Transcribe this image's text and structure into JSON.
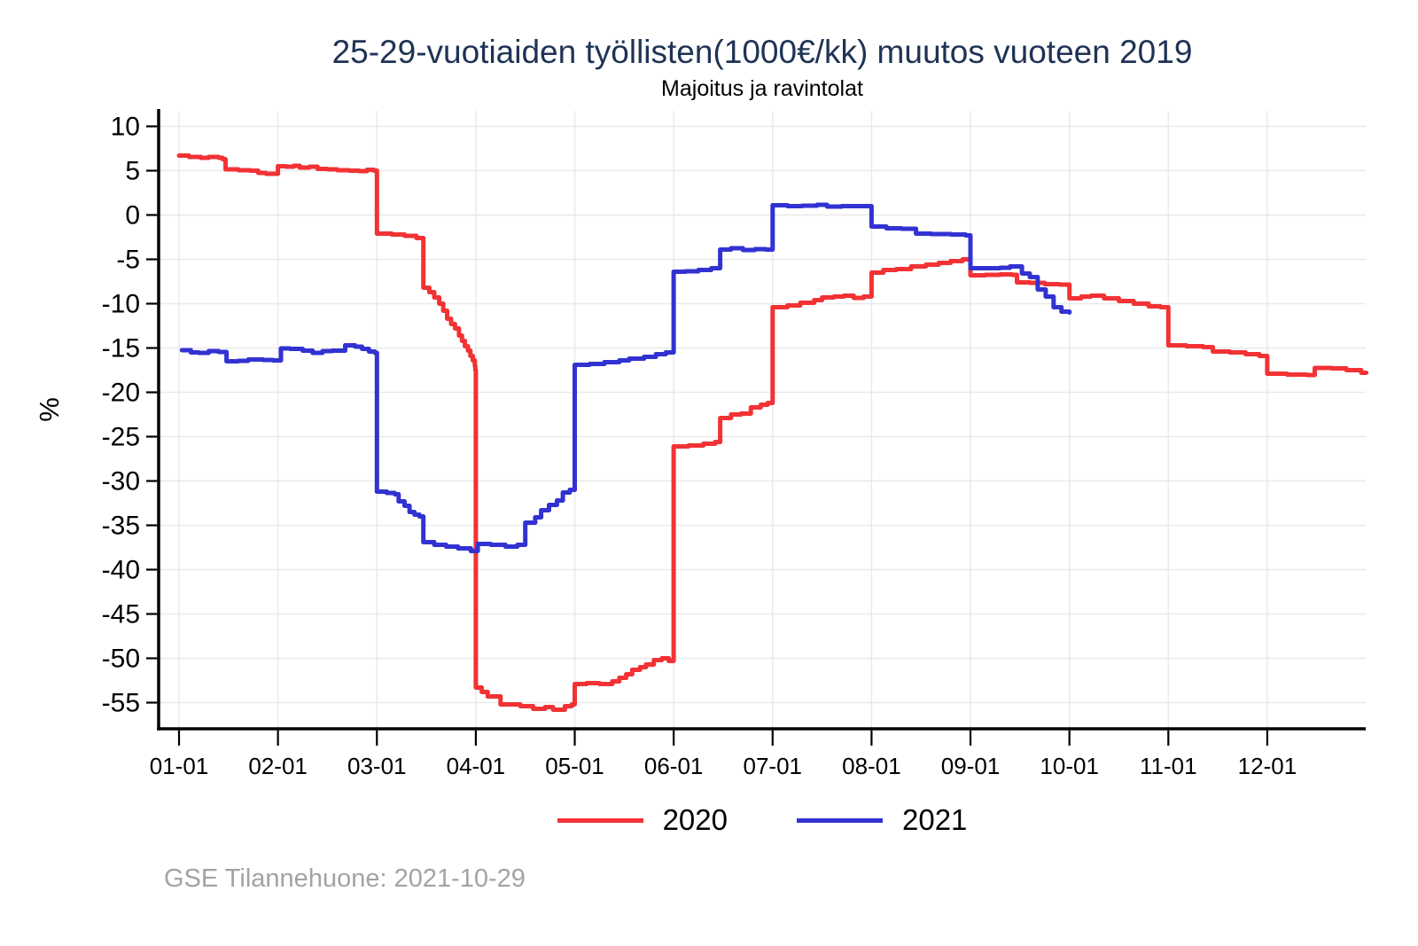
{
  "title": "25-29-vuotiaiden työllisten(1000€/kk) muutos vuoteen 2019",
  "subtitle": "Majoitus ja ravintolat",
  "footer": "GSE Tilannehuone: 2021-10-29",
  "colors": {
    "series_2020": "#f23234",
    "series_2021": "#3232d2",
    "title": "#1e3355",
    "axis": "#000000",
    "gridline": "#e9e9e9",
    "footer": "#a3a3a3"
  },
  "legend": [
    {
      "label": "2020",
      "color": "#f23234"
    },
    {
      "label": "2021",
      "color": "#3232d2"
    }
  ],
  "chart_data": {
    "type": "line",
    "title": "25-29-vuotiaiden työllisten(1000€/kk) muutos vuoteen 2019",
    "subtitle": "Majoitus ja ravintolat",
    "xlabel": "",
    "ylabel": "%",
    "grid": "on",
    "legend_position": "bottom",
    "step_interpolation": true,
    "x_tick_labels": [
      "01-01",
      "02-01",
      "03-01",
      "04-01",
      "05-01",
      "06-01",
      "07-01",
      "08-01",
      "09-01",
      "10-01",
      "11-01",
      "12-01"
    ],
    "y_ticks": [
      10,
      5,
      0,
      -5,
      -10,
      -15,
      -20,
      -25,
      -30,
      -35,
      -40,
      -45,
      -50,
      -55
    ],
    "ylim": [
      -58.2,
      11.8
    ],
    "xlim_months": [
      -0.21,
      12.05
    ],
    "series": [
      {
        "name": "2020",
        "color": "#f23234",
        "points_months_value": [
          [
            0.0,
            6.7
          ],
          [
            0.1,
            6.55
          ],
          [
            0.22,
            6.45
          ],
          [
            0.3,
            6.55
          ],
          [
            0.4,
            6.45
          ],
          [
            0.44,
            6.3
          ],
          [
            0.47,
            5.15
          ],
          [
            0.6,
            5.05
          ],
          [
            0.72,
            5.0
          ],
          [
            0.8,
            4.75
          ],
          [
            0.88,
            4.65
          ],
          [
            1.0,
            5.5
          ],
          [
            1.08,
            5.45
          ],
          [
            1.16,
            5.55
          ],
          [
            1.22,
            5.35
          ],
          [
            1.32,
            5.45
          ],
          [
            1.4,
            5.2
          ],
          [
            1.5,
            5.15
          ],
          [
            1.6,
            5.05
          ],
          [
            1.72,
            5.0
          ],
          [
            1.82,
            4.95
          ],
          [
            1.9,
            5.1
          ],
          [
            1.97,
            5.0
          ],
          [
            2.0,
            -2.1
          ],
          [
            2.15,
            -2.2
          ],
          [
            2.28,
            -2.35
          ],
          [
            2.4,
            -2.6
          ],
          [
            2.47,
            -8.2
          ],
          [
            2.53,
            -8.7
          ],
          [
            2.58,
            -9.3
          ],
          [
            2.63,
            -10.0
          ],
          [
            2.67,
            -10.8
          ],
          [
            2.71,
            -11.7
          ],
          [
            2.75,
            -12.3
          ],
          [
            2.79,
            -12.8
          ],
          [
            2.83,
            -13.6
          ],
          [
            2.86,
            -14.2
          ],
          [
            2.89,
            -14.8
          ],
          [
            2.92,
            -15.3
          ],
          [
            2.945,
            -15.9
          ],
          [
            2.97,
            -16.4
          ],
          [
            2.99,
            -17.0
          ],
          [
            2.995,
            -17.5
          ],
          [
            3.0,
            -53.3
          ],
          [
            3.06,
            -53.8
          ],
          [
            3.12,
            -54.3
          ],
          [
            3.25,
            -55.2
          ],
          [
            3.45,
            -55.4
          ],
          [
            3.58,
            -55.7
          ],
          [
            3.7,
            -55.5
          ],
          [
            3.78,
            -55.8
          ],
          [
            3.9,
            -55.4
          ],
          [
            3.97,
            -55.2
          ],
          [
            4.0,
            -52.9
          ],
          [
            4.12,
            -52.8
          ],
          [
            4.25,
            -52.9
          ],
          [
            4.38,
            -52.6
          ],
          [
            4.45,
            -52.2
          ],
          [
            4.52,
            -51.8
          ],
          [
            4.58,
            -51.3
          ],
          [
            4.66,
            -51.0
          ],
          [
            4.72,
            -50.7
          ],
          [
            4.8,
            -50.2
          ],
          [
            4.88,
            -50.0
          ],
          [
            4.95,
            -50.3
          ],
          [
            5.0,
            -26.1
          ],
          [
            5.15,
            -26.0
          ],
          [
            5.3,
            -25.8
          ],
          [
            5.42,
            -25.6
          ],
          [
            5.47,
            -22.9
          ],
          [
            5.58,
            -22.5
          ],
          [
            5.68,
            -22.4
          ],
          [
            5.78,
            -21.7
          ],
          [
            5.88,
            -21.4
          ],
          [
            5.95,
            -21.2
          ],
          [
            6.0,
            -10.4
          ],
          [
            6.15,
            -10.2
          ],
          [
            6.28,
            -9.9
          ],
          [
            6.42,
            -9.6
          ],
          [
            6.5,
            -9.3
          ],
          [
            6.62,
            -9.2
          ],
          [
            6.72,
            -9.1
          ],
          [
            6.82,
            -9.35
          ],
          [
            6.92,
            -9.2
          ],
          [
            7.0,
            -6.5
          ],
          [
            7.12,
            -6.2
          ],
          [
            7.25,
            -6.1
          ],
          [
            7.4,
            -5.8
          ],
          [
            7.55,
            -5.6
          ],
          [
            7.68,
            -5.4
          ],
          [
            7.8,
            -5.2
          ],
          [
            7.92,
            -5.0
          ],
          [
            8.0,
            -6.8
          ],
          [
            8.15,
            -6.75
          ],
          [
            8.3,
            -6.7
          ],
          [
            8.42,
            -6.75
          ],
          [
            8.47,
            -7.6
          ],
          [
            8.6,
            -7.65
          ],
          [
            8.75,
            -7.8
          ],
          [
            8.9,
            -7.85
          ],
          [
            9.0,
            -9.4
          ],
          [
            9.12,
            -9.2
          ],
          [
            9.22,
            -9.1
          ],
          [
            9.35,
            -9.4
          ],
          [
            9.5,
            -9.7
          ],
          [
            9.65,
            -10.0
          ],
          [
            9.8,
            -10.3
          ],
          [
            9.92,
            -10.4
          ],
          [
            10.0,
            -14.7
          ],
          [
            10.18,
            -14.8
          ],
          [
            10.35,
            -14.9
          ],
          [
            10.45,
            -15.4
          ],
          [
            10.62,
            -15.5
          ],
          [
            10.78,
            -15.7
          ],
          [
            10.92,
            -15.9
          ],
          [
            11.0,
            -17.9
          ],
          [
            11.2,
            -18.0
          ],
          [
            11.4,
            -18.05
          ],
          [
            11.48,
            -17.25
          ],
          [
            11.65,
            -17.3
          ],
          [
            11.8,
            -17.5
          ],
          [
            11.95,
            -17.8
          ],
          [
            12.0,
            -17.8
          ]
        ]
      },
      {
        "name": "2021",
        "color": "#3232d2",
        "points_months_value": [
          [
            0.03,
            -15.25
          ],
          [
            0.12,
            -15.5
          ],
          [
            0.2,
            -15.55
          ],
          [
            0.3,
            -15.35
          ],
          [
            0.4,
            -15.45
          ],
          [
            0.48,
            -16.5
          ],
          [
            0.6,
            -16.45
          ],
          [
            0.7,
            -16.3
          ],
          [
            0.85,
            -16.35
          ],
          [
            0.95,
            -16.4
          ],
          [
            1.03,
            -15.05
          ],
          [
            1.12,
            -15.1
          ],
          [
            1.25,
            -15.3
          ],
          [
            1.35,
            -15.55
          ],
          [
            1.45,
            -15.35
          ],
          [
            1.55,
            -15.3
          ],
          [
            1.68,
            -14.7
          ],
          [
            1.78,
            -14.85
          ],
          [
            1.85,
            -15.1
          ],
          [
            1.92,
            -15.4
          ],
          [
            1.98,
            -15.55
          ],
          [
            2.0,
            -31.2
          ],
          [
            2.1,
            -31.35
          ],
          [
            2.18,
            -31.5
          ],
          [
            2.22,
            -32.3
          ],
          [
            2.28,
            -32.8
          ],
          [
            2.33,
            -33.5
          ],
          [
            2.38,
            -33.8
          ],
          [
            2.43,
            -34.0
          ],
          [
            2.47,
            -36.9
          ],
          [
            2.58,
            -37.2
          ],
          [
            2.7,
            -37.4
          ],
          [
            2.82,
            -37.6
          ],
          [
            2.95,
            -37.9
          ],
          [
            3.02,
            -37.1
          ],
          [
            3.15,
            -37.2
          ],
          [
            3.3,
            -37.4
          ],
          [
            3.42,
            -37.2
          ],
          [
            3.5,
            -34.7
          ],
          [
            3.6,
            -34.1
          ],
          [
            3.66,
            -33.3
          ],
          [
            3.74,
            -32.7
          ],
          [
            3.82,
            -32.2
          ],
          [
            3.88,
            -31.3
          ],
          [
            3.95,
            -31.0
          ],
          [
            4.0,
            -16.9
          ],
          [
            4.15,
            -16.8
          ],
          [
            4.3,
            -16.6
          ],
          [
            4.45,
            -16.4
          ],
          [
            4.55,
            -16.2
          ],
          [
            4.7,
            -16.0
          ],
          [
            4.82,
            -15.7
          ],
          [
            4.92,
            -15.5
          ],
          [
            5.0,
            -6.4
          ],
          [
            5.12,
            -6.35
          ],
          [
            5.25,
            -6.2
          ],
          [
            5.38,
            -6.0
          ],
          [
            5.47,
            -3.9
          ],
          [
            5.58,
            -3.75
          ],
          [
            5.7,
            -3.95
          ],
          [
            5.82,
            -3.85
          ],
          [
            5.93,
            -3.9
          ],
          [
            6.0,
            1.1
          ],
          [
            6.15,
            1.0
          ],
          [
            6.3,
            1.05
          ],
          [
            6.45,
            1.15
          ],
          [
            6.55,
            0.95
          ],
          [
            6.7,
            1.0
          ],
          [
            6.85,
            1.0
          ],
          [
            7.0,
            -1.3
          ],
          [
            7.15,
            -1.5
          ],
          [
            7.3,
            -1.55
          ],
          [
            7.45,
            -2.1
          ],
          [
            7.6,
            -2.15
          ],
          [
            7.8,
            -2.2
          ],
          [
            7.95,
            -2.3
          ],
          [
            8.0,
            -6.0
          ],
          [
            8.15,
            -6.0
          ],
          [
            8.3,
            -5.95
          ],
          [
            8.4,
            -5.8
          ],
          [
            8.52,
            -6.6
          ],
          [
            8.6,
            -7.0
          ],
          [
            8.68,
            -8.4
          ],
          [
            8.76,
            -9.2
          ],
          [
            8.84,
            -10.4
          ],
          [
            8.92,
            -10.9
          ],
          [
            9.0,
            -11.0
          ]
        ]
      }
    ]
  }
}
